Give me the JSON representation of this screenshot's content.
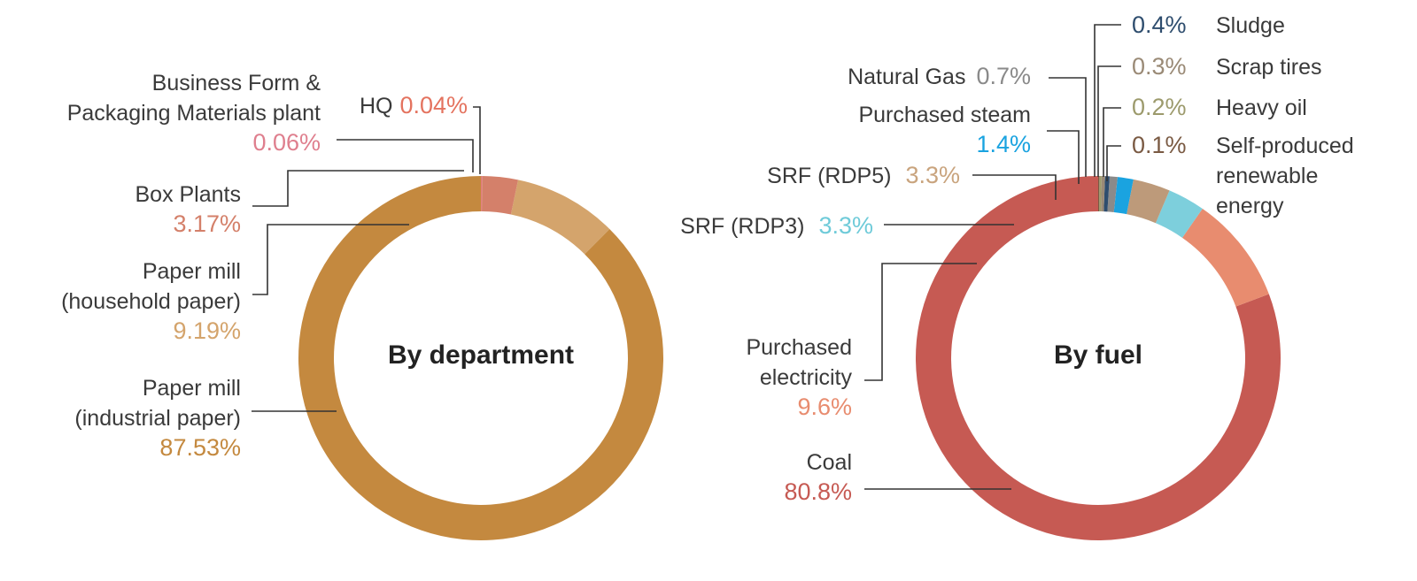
{
  "chart_data": [
    {
      "type": "pie",
      "title": "By department",
      "unit": "%",
      "slices": [
        {
          "name": "Paper mill (industrial paper)",
          "label_lines": [
            "Paper mill",
            "(industrial paper)"
          ],
          "value": 87.53,
          "value_text": "87.53%",
          "color": "#C4893F",
          "label_color": "#C4893F"
        },
        {
          "name": "Paper mill (household paper)",
          "label_lines": [
            "Paper mill",
            "(household paper)"
          ],
          "value": 9.19,
          "value_text": "9.19%",
          "color": "#D4A46C",
          "label_color": "#D4A46C"
        },
        {
          "name": "Box Plants",
          "label_lines": [
            "Box Plants"
          ],
          "value": 3.17,
          "value_text": "3.17%",
          "color": "#D4806A",
          "label_color": "#D4806A"
        },
        {
          "name": "Business Form & Packaging Materials plant",
          "label_lines": [
            "Business Form &",
            "Packaging Materials plant"
          ],
          "value": 0.06,
          "value_text": "0.06%",
          "color": "#DF7F8E",
          "label_color": "#DF7F8E"
        },
        {
          "name": "HQ",
          "label_lines": [
            "HQ"
          ],
          "value": 0.04,
          "value_text": "0.04%",
          "color": "#E4735F",
          "label_color": "#E4735F"
        }
      ]
    },
    {
      "type": "pie",
      "title": "By fuel",
      "unit": "%",
      "slices": [
        {
          "name": "Coal",
          "label_lines": [
            "Coal"
          ],
          "value": 80.8,
          "value_text": "80.8%",
          "color": "#C65A53",
          "label_color": "#C65A53"
        },
        {
          "name": "Purchased electricity",
          "label_lines": [
            "Purchased",
            "electricity"
          ],
          "value": 9.6,
          "value_text": "9.6%",
          "color": "#E88C6F",
          "label_color": "#E88C6F"
        },
        {
          "name": "SRF (RDP3)",
          "label_lines": [
            "SRF (RDP3)"
          ],
          "value": 3.3,
          "value_text": "3.3%",
          "color": "#7DCFDC",
          "label_color": "#6FCBD9"
        },
        {
          "name": "SRF (RDP5)",
          "label_lines": [
            "SRF (RDP5)"
          ],
          "value": 3.3,
          "value_text": "3.3%",
          "color": "#BD9A7A",
          "label_color": "#C9A47E"
        },
        {
          "name": "Purchased steam",
          "label_lines": [
            "Purchased steam"
          ],
          "value": 1.4,
          "value_text": "1.4%",
          "color": "#1AA3E0",
          "label_color": "#1AA3E0"
        },
        {
          "name": "Natural Gas",
          "label_lines": [
            "Natural Gas"
          ],
          "value": 0.7,
          "value_text": "0.7%",
          "color": "#8A8A8A",
          "label_color": "#8A8A8A"
        },
        {
          "name": "Sludge",
          "label_lines": [
            "Sludge"
          ],
          "value": 0.4,
          "value_text": "0.4%",
          "color": "#2E4D6E",
          "label_color": "#2E4D6E"
        },
        {
          "name": "Scrap tires",
          "label_lines": [
            "Scrap tires"
          ],
          "value": 0.3,
          "value_text": "0.3%",
          "color": "#9A8A76",
          "label_color": "#9A8A76"
        },
        {
          "name": "Heavy oil",
          "label_lines": [
            "Heavy oil"
          ],
          "value": 0.2,
          "value_text": "0.2%",
          "color": "#9C9A6C",
          "label_color": "#9C9A6C"
        },
        {
          "name": "Self-produced renewable energy",
          "label_lines": [
            "Self-produced",
            "renewable",
            "energy"
          ],
          "value": 0.1,
          "value_text": "0.1%",
          "color": "#7A5A43",
          "label_color": "#7A5A43"
        }
      ]
    }
  ]
}
